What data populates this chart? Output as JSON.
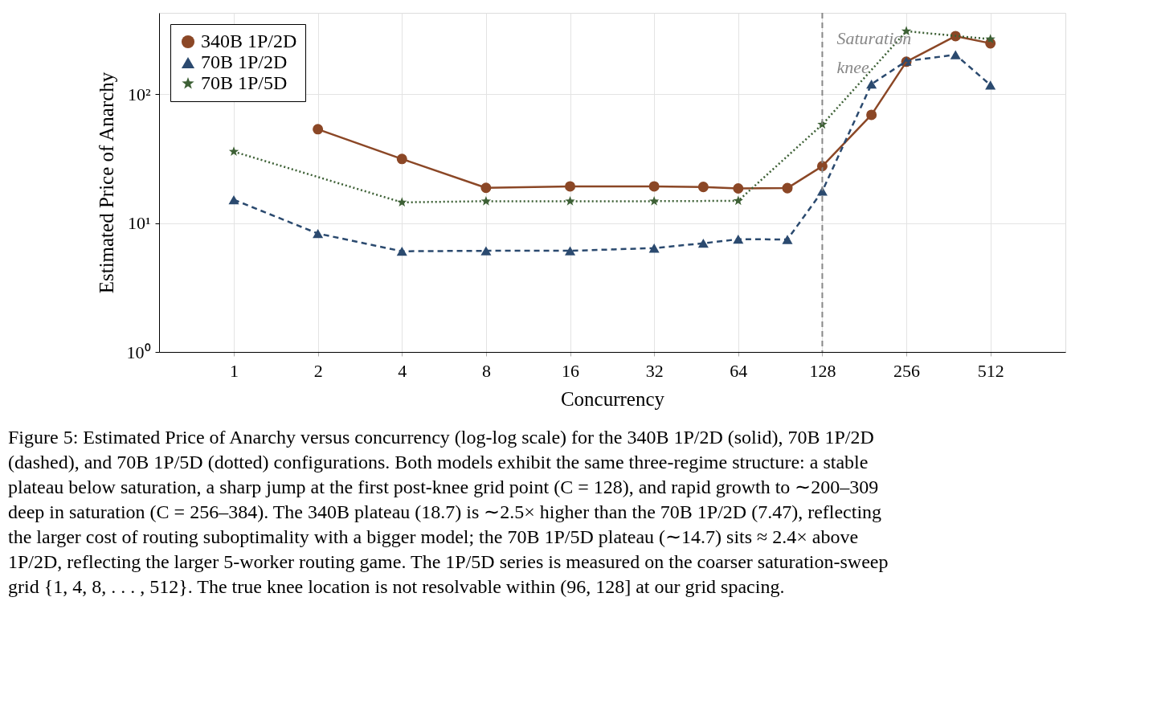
{
  "chart_data": {
    "type": "line",
    "xlabel": "Concurrency",
    "ylabel": "Estimated Price of Anarchy",
    "log": "xy",
    "grid": true,
    "legend": "top left",
    "x": [
      1,
      2,
      4,
      8,
      16,
      32,
      48,
      64,
      96,
      128,
      192,
      256,
      384,
      512
    ],
    "xlim": [
      0.54,
      950
    ],
    "xticks": [
      1,
      2,
      4,
      8,
      16,
      32,
      64,
      128,
      256,
      512
    ],
    "ylim": [
      1,
      429
    ],
    "yticks": [
      {
        "value": 1,
        "label": "10⁰"
      },
      {
        "value": 10,
        "label": "10¹"
      },
      {
        "value": 100,
        "label": "10²"
      }
    ],
    "series": [
      {
        "name": "340B 1P/2D",
        "color": "#8b4726",
        "marker": "circle",
        "line_style": "solid",
        "values": [
          null,
          53.6,
          31.5,
          18.8,
          19.3,
          19.3,
          19.1,
          18.6,
          18.7,
          27.7,
          69.3,
          179,
          283,
          249
        ]
      },
      {
        "name": "70B 1P/2D",
        "color": "#2b4a6f",
        "marker": "triangle",
        "line_style": "dashed",
        "values": [
          15.2,
          8.3,
          6.05,
          6.1,
          6.1,
          6.4,
          6.98,
          7.5,
          7.47,
          17.7,
          120,
          181,
          203,
          118
        ]
      },
      {
        "name": "70B 1P/5D",
        "color": "#3d6035",
        "marker": "star",
        "line_style": "dotted",
        "x": [
          1,
          4,
          8,
          16,
          32,
          64,
          128,
          256,
          512
        ],
        "values": [
          35.9,
          14.5,
          14.8,
          14.8,
          14.8,
          14.9,
          58.3,
          309,
          268
        ]
      }
    ],
    "ref_lines": [
      {
        "axis": "x",
        "value": 128,
        "label": "Saturation knee",
        "color": "#888888",
        "line_style": "dashed"
      }
    ],
    "annotations": [
      "Figure 5: Estimated Price of Anarchy versus concurrency (log-log scale) for the 340B 1P/2D (solid), 70B 1P/2D (dashed), and 70B 1P/5D (dotted) configurations. Both models exhibit the same three-regime structure: a stable plateau below saturation, a sharp jump at the first post-knee grid point (C = 128), and rapid growth to ∼200–309 deep in saturation (C = 256–384). The 340B plateau (18.7) is ∼2.5× higher than the 70B 1P/2D (7.47), reflecting the larger cost of routing suboptimality with a bigger model; the 70B 1P/5D plateau (∼14.7) sits ≈ 2.4× above 1P/2D, reflecting the larger 5-worker routing game. The 1P/5D series is measured on the coarser saturation-sweep grid {1, 4, 8, . . . , 512}. The true knee location is not resolvable within (96, 128] at our grid spacing."
    ]
  }
}
